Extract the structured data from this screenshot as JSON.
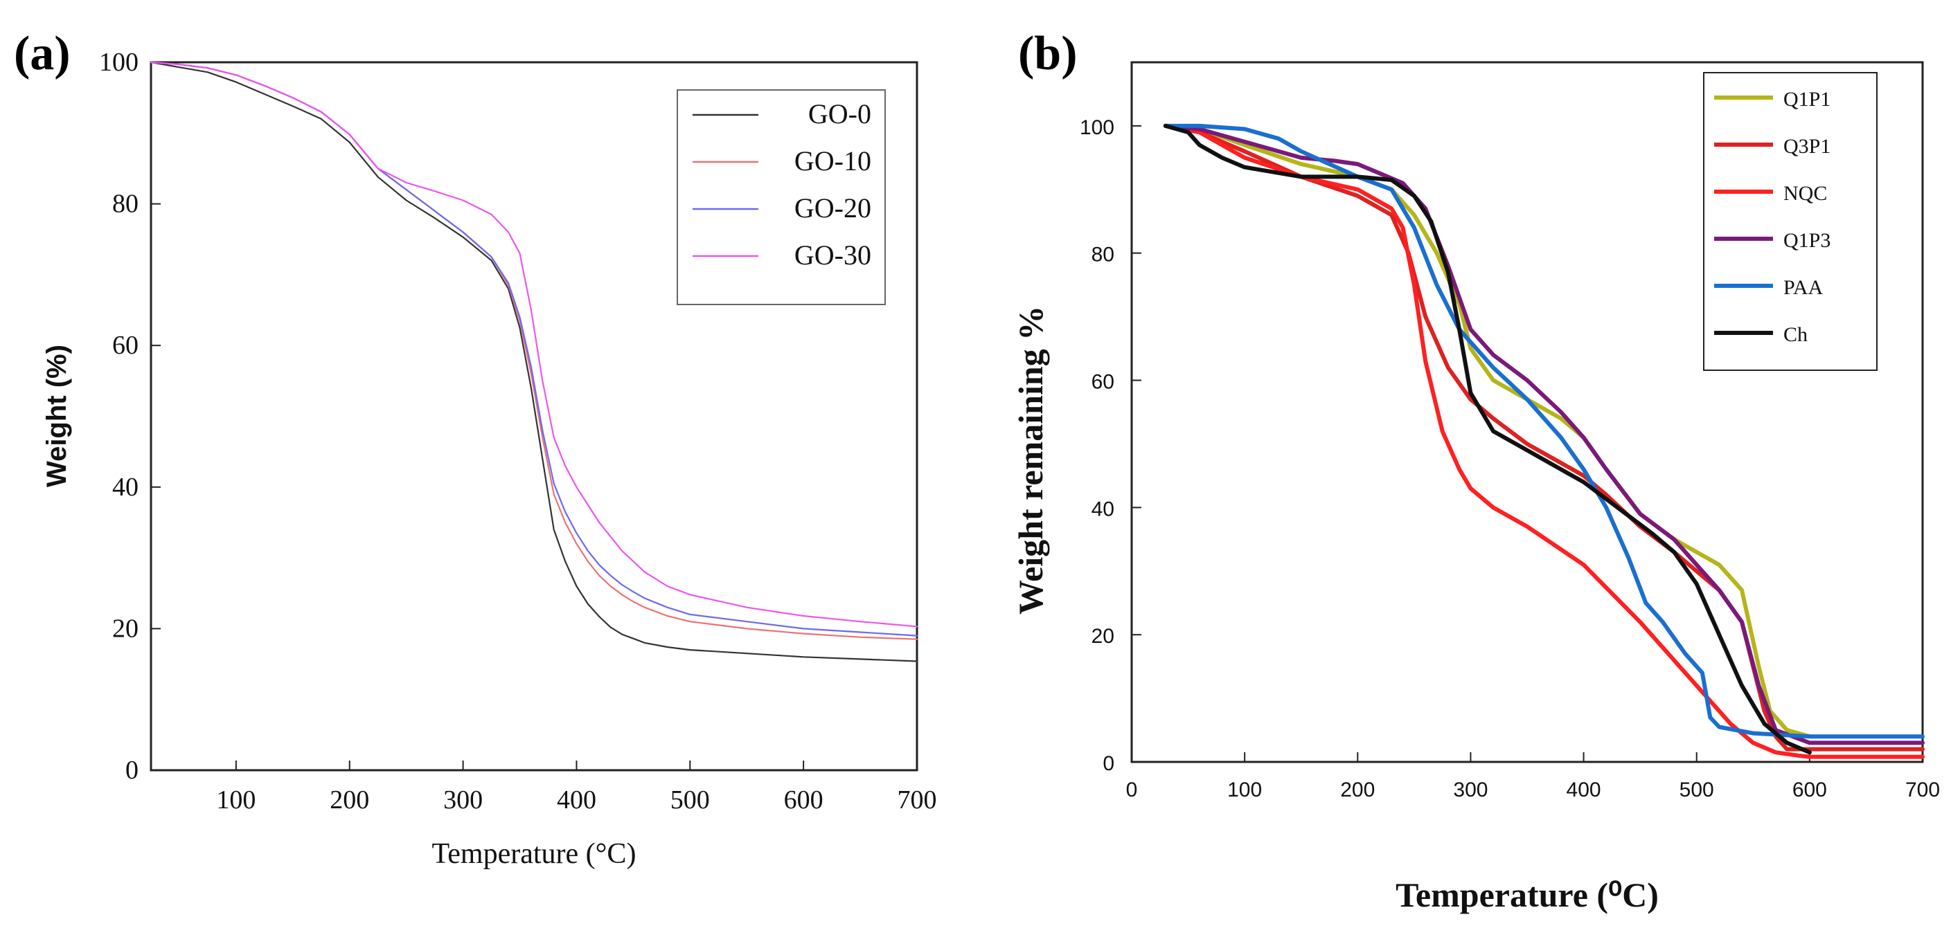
{
  "chart_data": [
    {
      "panel": "(a)",
      "type": "line",
      "title": "",
      "xlabel": "Temperature (°C)",
      "ylabel": "Weight (%)",
      "xlim": [
        25,
        700
      ],
      "ylim": [
        0,
        100
      ],
      "xticks": [
        100,
        200,
        300,
        400,
        500,
        600,
        700
      ],
      "yticks": [
        0,
        20,
        40,
        60,
        80,
        100
      ],
      "grid": false,
      "legend_position": "top-right",
      "series": [
        {
          "name": "GO-0",
          "color": "#333333",
          "x": [
            25,
            50,
            75,
            100,
            125,
            150,
            175,
            200,
            225,
            250,
            275,
            300,
            325,
            340,
            350,
            360,
            370,
            380,
            390,
            400,
            410,
            420,
            430,
            440,
            450,
            460,
            480,
            500,
            550,
            600,
            650,
            700
          ],
          "y": [
            100,
            99.3,
            98.6,
            97.2,
            95.5,
            93.8,
            92.0,
            88.7,
            83.8,
            80.5,
            78.0,
            75.3,
            72.0,
            68.0,
            62.5,
            54.0,
            44.0,
            34.0,
            29.5,
            26.0,
            23.5,
            21.7,
            20.2,
            19.2,
            18.6,
            18.0,
            17.4,
            17.0,
            16.5,
            16.0,
            15.7,
            15.4
          ]
        },
        {
          "name": "GO-10",
          "color": "#f07070",
          "x": [
            25,
            50,
            75,
            100,
            125,
            150,
            175,
            200,
            225,
            250,
            275,
            300,
            325,
            340,
            350,
            360,
            370,
            380,
            390,
            400,
            410,
            420,
            430,
            440,
            450,
            460,
            480,
            500,
            550,
            600,
            650,
            700
          ],
          "y": [
            100,
            99.7,
            99.2,
            98.2,
            96.7,
            95.0,
            93.0,
            89.8,
            85.0,
            82.0,
            79.0,
            76.0,
            72.5,
            68.5,
            63.5,
            56.0,
            47.0,
            39.0,
            35.0,
            32.0,
            29.5,
            27.5,
            26.0,
            24.8,
            23.8,
            23.0,
            21.8,
            21.0,
            20.0,
            19.3,
            18.8,
            18.5
          ]
        },
        {
          "name": "GO-20",
          "color": "#6a6af0",
          "x": [
            25,
            50,
            75,
            100,
            125,
            150,
            175,
            200,
            225,
            250,
            275,
            300,
            325,
            340,
            350,
            360,
            370,
            380,
            390,
            400,
            410,
            420,
            430,
            440,
            450,
            460,
            480,
            500,
            550,
            600,
            650,
            700
          ],
          "y": [
            100,
            99.7,
            99.2,
            98.2,
            96.7,
            95.0,
            93.0,
            89.8,
            85.0,
            82.0,
            79.0,
            76.0,
            72.5,
            68.8,
            64.0,
            57.0,
            48.0,
            40.5,
            36.5,
            33.5,
            31.0,
            29.0,
            27.5,
            26.2,
            25.2,
            24.3,
            23.0,
            22.0,
            21.0,
            20.0,
            19.5,
            19.0
          ]
        },
        {
          "name": "GO-30",
          "color": "#ee55ee",
          "x": [
            25,
            50,
            75,
            100,
            125,
            150,
            175,
            200,
            225,
            250,
            275,
            300,
            325,
            340,
            350,
            360,
            370,
            380,
            390,
            400,
            410,
            420,
            430,
            440,
            450,
            460,
            480,
            500,
            550,
            600,
            650,
            700
          ],
          "y": [
            100,
            99.7,
            99.2,
            98.2,
            96.7,
            95.0,
            93.0,
            89.8,
            85.0,
            83.0,
            81.8,
            80.5,
            78.5,
            76.0,
            73.0,
            65.0,
            55.0,
            47.0,
            43.0,
            40.0,
            37.5,
            35.0,
            33.0,
            31.0,
            29.5,
            28.0,
            26.0,
            24.8,
            23.0,
            21.8,
            21.0,
            20.3
          ]
        }
      ]
    },
    {
      "panel": "(b)",
      "type": "line",
      "title": "",
      "xlabel": "Temperature (⁰C)",
      "ylabel": "Weight remaining %",
      "xlim": [
        0,
        700
      ],
      "ylim": [
        0,
        110
      ],
      "xticks": [
        0,
        100,
        200,
        300,
        400,
        500,
        600,
        700
      ],
      "yticks": [
        0,
        20,
        40,
        60,
        80,
        100
      ],
      "grid": false,
      "legend_position": "top-right",
      "series": [
        {
          "name": "Q1P1",
          "color": "#b5b51a",
          "x": [
            30,
            60,
            100,
            150,
            200,
            230,
            250,
            270,
            290,
            300,
            320,
            350,
            380,
            400,
            420,
            450,
            480,
            500,
            520,
            540,
            555,
            565,
            580,
            600
          ],
          "y": [
            100,
            99.5,
            97,
            94,
            92,
            90,
            86,
            80,
            72,
            65,
            60,
            57,
            54,
            51,
            46,
            39,
            35,
            33,
            31,
            27,
            15,
            8,
            5,
            4
          ]
        },
        {
          "name": "Q3P1",
          "color": "#dd2222",
          "x": [
            30,
            60,
            100,
            150,
            200,
            230,
            245,
            260,
            280,
            300,
            320,
            350,
            380,
            400,
            420,
            450,
            480,
            500,
            520,
            540,
            550,
            560,
            570,
            580,
            600,
            700
          ],
          "y": [
            100,
            99,
            96,
            92,
            89,
            86,
            80,
            70,
            62,
            57,
            54,
            50,
            47,
            45,
            42,
            37,
            33,
            30,
            27,
            22,
            15,
            8,
            4,
            2,
            2,
            2
          ]
        },
        {
          "name": "NQC",
          "color": "#ff2020",
          "x": [
            30,
            60,
            100,
            150,
            200,
            230,
            240,
            250,
            260,
            275,
            290,
            300,
            320,
            350,
            400,
            450,
            500,
            530,
            550,
            570,
            590,
            600,
            620,
            700
          ],
          "y": [
            100,
            99,
            95,
            92,
            90,
            87,
            84,
            75,
            63,
            52,
            46,
            43,
            40,
            37,
            31,
            22,
            12,
            6,
            3,
            1.5,
            1,
            0.8,
            0.8,
            0.8
          ]
        },
        {
          "name": "Q1P3",
          "color": "#7a1a7a",
          "x": [
            30,
            60,
            100,
            150,
            180,
            200,
            220,
            240,
            260,
            280,
            300,
            320,
            350,
            380,
            400,
            420,
            450,
            480,
            500,
            520,
            540,
            555,
            570,
            600,
            700
          ],
          "y": [
            100,
            99.5,
            97.5,
            95,
            94.5,
            94,
            92.5,
            91,
            87,
            78,
            68,
            64,
            60,
            55,
            51,
            46,
            39,
            35,
            31,
            27,
            22,
            12,
            5,
            3,
            3
          ]
        },
        {
          "name": "PAA",
          "color": "#1a6fd0",
          "x": [
            30,
            60,
            100,
            130,
            150,
            200,
            230,
            250,
            270,
            290,
            300,
            320,
            350,
            380,
            400,
            420,
            440,
            455,
            470,
            490,
            505,
            512,
            520,
            550,
            600,
            700
          ],
          "y": [
            100,
            100,
            99.5,
            98,
            96,
            92,
            90,
            84,
            75,
            68,
            66,
            62,
            57,
            51,
            46,
            40,
            32,
            25,
            22,
            17,
            14,
            7,
            5.5,
            4.5,
            4,
            4
          ]
        },
        {
          "name": "Ch",
          "color": "#111111",
          "x": [
            30,
            50,
            60,
            80,
            100,
            150,
            200,
            230,
            250,
            265,
            280,
            290,
            300,
            320,
            350,
            380,
            400,
            430,
            460,
            480,
            500,
            520,
            540,
            560,
            580,
            600
          ],
          "y": [
            100,
            99,
            97,
            95,
            93.5,
            92,
            92,
            91.5,
            89,
            85,
            77,
            68,
            58,
            52,
            49,
            46,
            44,
            40,
            36,
            33,
            28,
            20,
            12,
            6,
            3,
            1.5
          ]
        }
      ]
    }
  ]
}
